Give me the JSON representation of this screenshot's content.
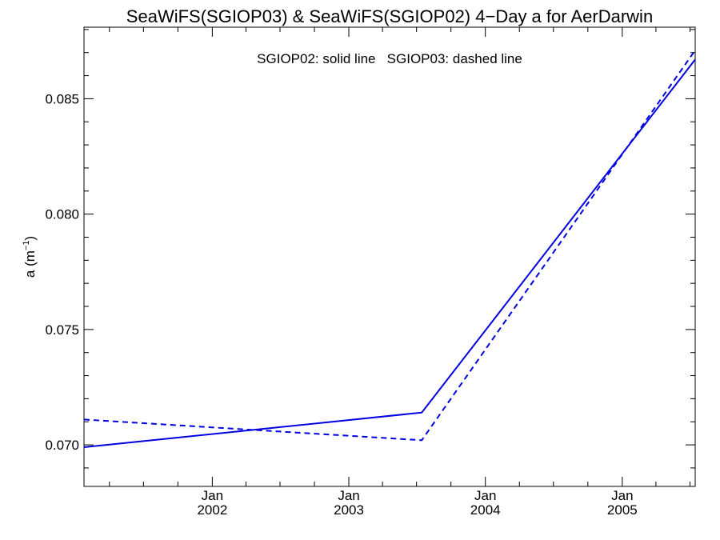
{
  "colors": {
    "series": "#0000e0",
    "axis": "#000000",
    "background": "#ffffff"
  },
  "chart_data": {
    "type": "line",
    "title": "SeaWiFS(SGIOP03) & SeaWiFS(SGIOP02) 4−Day a for AerDarwin",
    "annotation": "SGIOP02: solid line   SGIOP03: dashed line",
    "xlabel": "",
    "ylabel_base": "a (m",
    "ylabel_sup": "−1",
    "ylabel_close": ")",
    "ylim": [
      0.0682,
      0.0881
    ],
    "xlim": [
      "2001-01-23",
      "2005-07-15"
    ],
    "grid": false,
    "x_ticks": [
      {
        "date": "2002-01-01",
        "month": "Jan",
        "year": "2002"
      },
      {
        "date": "2003-01-01",
        "month": "Jan",
        "year": "2003"
      },
      {
        "date": "2004-01-01",
        "month": "Jan",
        "year": "2004"
      },
      {
        "date": "2005-01-01",
        "month": "Jan",
        "year": "2005"
      }
    ],
    "y_ticks": [
      0.07,
      0.075,
      0.08,
      0.085
    ],
    "y_tick_labels": [
      "0.070",
      "0.075",
      "0.080",
      "0.085"
    ],
    "series": [
      {
        "name": "SGIOP02",
        "style": "solid",
        "x": [
          "2001-01-23",
          "2003-07-15",
          "2005-07-15"
        ],
        "y": [
          0.0699,
          0.0714,
          0.0867
        ]
      },
      {
        "name": "SGIOP03",
        "style": "dashed",
        "x": [
          "2001-01-23",
          "2003-07-15",
          "2005-07-15"
        ],
        "y": [
          0.0711,
          0.0702,
          0.0871
        ]
      }
    ]
  }
}
